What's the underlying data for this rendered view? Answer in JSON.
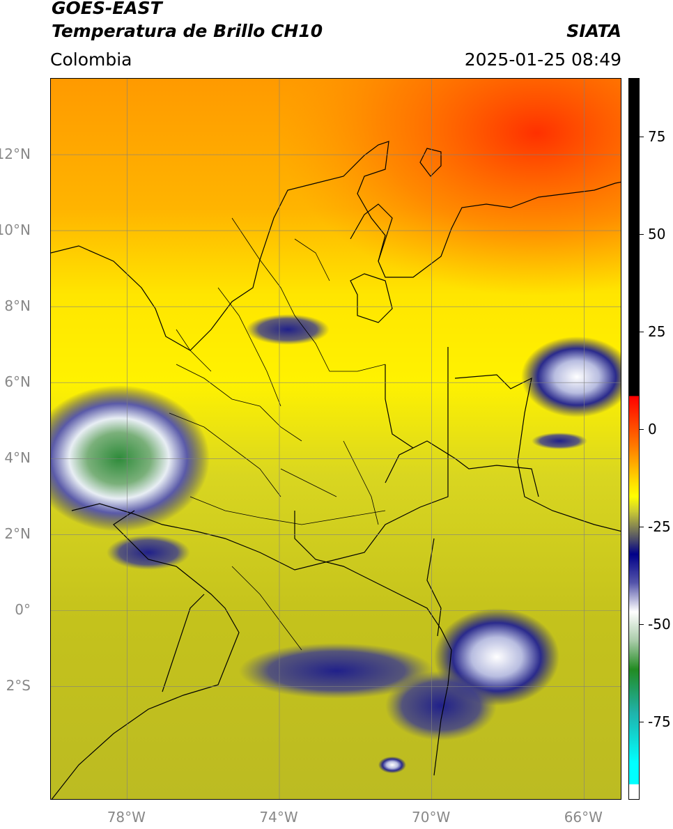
{
  "header": {
    "satellite": "GOES-EAST",
    "product": "Temperatura de Brillo CH10",
    "agency": "SIATA",
    "region": "Colombia",
    "timestamp": "2025-01-25 08:49"
  },
  "map": {
    "lon_range": [
      -80,
      -65
    ],
    "lat_range": [
      -5,
      14
    ],
    "lat_ticks": [
      {
        "value": 12,
        "label": "12°N"
      },
      {
        "value": 10,
        "label": "10°N"
      },
      {
        "value": 8,
        "label": "8°N"
      },
      {
        "value": 6,
        "label": "6°N"
      },
      {
        "value": 4,
        "label": "4°N"
      },
      {
        "value": 2,
        "label": "2°N"
      },
      {
        "value": 0,
        "label": "0°"
      },
      {
        "value": -2,
        "label": "2°S"
      }
    ],
    "lon_ticks": [
      {
        "value": -78,
        "label": "78°W"
      },
      {
        "value": -74,
        "label": "74°W"
      },
      {
        "value": -70,
        "label": "70°W"
      },
      {
        "value": -66,
        "label": "66°W"
      }
    ],
    "grid": true,
    "colors": {
      "warm_north": "#ff8c00",
      "hot_northeast": "#ff3a00",
      "mid": "#ffee00",
      "south_olive": "#c8c81e",
      "cold_cloud": "#1a1a7a",
      "very_cold": "#2e8b3a"
    }
  },
  "colorbar": {
    "range": [
      -95,
      90
    ],
    "ticks": [
      {
        "value": 75,
        "label": "75"
      },
      {
        "value": 50,
        "label": "50"
      },
      {
        "value": 25,
        "label": "25"
      },
      {
        "value": 0,
        "label": "0"
      },
      {
        "value": -25,
        "label": "-25"
      },
      {
        "value": -50,
        "label": "-50"
      },
      {
        "value": -75,
        "label": "-75"
      }
    ]
  }
}
